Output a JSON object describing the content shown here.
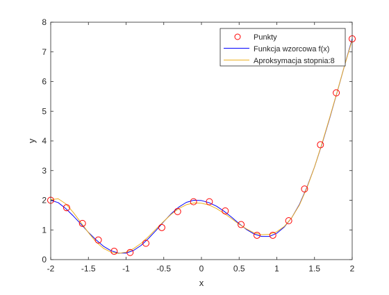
{
  "chart_data": {
    "type": "line",
    "title": "",
    "xlabel": "x",
    "ylabel": "y",
    "xlim": [
      -2,
      2
    ],
    "ylim": [
      0,
      8
    ],
    "x_ticks": [
      -2,
      -1.5,
      -1,
      -0.5,
      0,
      0.5,
      1,
      1.5,
      2
    ],
    "x_tick_labels": [
      "-2",
      "-1.5",
      "-1",
      "-0.5",
      "0",
      "0.5",
      "1",
      "1.5",
      "2"
    ],
    "y_ticks": [
      0,
      1,
      2,
      3,
      4,
      5,
      6,
      7,
      8
    ],
    "y_tick_labels": [
      "0",
      "1",
      "2",
      "3",
      "4",
      "5",
      "6",
      "7",
      "8"
    ],
    "grid": false,
    "legend_position": "top-right",
    "series": [
      {
        "name": "Punkty",
        "style": "markers",
        "marker": "circle",
        "color": "#ff0000",
        "x": [
          -2.0,
          -1.789,
          -1.579,
          -1.368,
          -1.158,
          -0.947,
          -0.737,
          -0.526,
          -0.316,
          -0.105,
          0.105,
          0.316,
          0.526,
          0.737,
          0.947,
          1.158,
          1.368,
          1.579,
          1.789,
          2.0
        ],
        "y": [
          2.0,
          1.75,
          1.22,
          0.66,
          0.28,
          0.24,
          0.55,
          1.08,
          1.62,
          1.95,
          1.95,
          1.64,
          1.18,
          0.82,
          0.82,
          1.31,
          2.38,
          3.87,
          5.62,
          7.44
        ]
      },
      {
        "name": "Funkcja wzorcowa f(x)",
        "style": "line",
        "color": "#0000ff",
        "x": [
          -2.0,
          -1.9,
          -1.8,
          -1.7,
          -1.6,
          -1.5,
          -1.4,
          -1.3,
          -1.2,
          -1.1,
          -1.0,
          -0.9,
          -0.8,
          -0.7,
          -0.6,
          -0.5,
          -0.4,
          -0.3,
          -0.2,
          -0.1,
          0.0,
          0.1,
          0.2,
          0.3,
          0.4,
          0.5,
          0.6,
          0.7,
          0.8,
          0.9,
          1.0,
          1.1,
          1.2,
          1.3,
          1.4,
          1.5,
          1.6,
          1.7,
          1.8,
          1.9,
          2.0
        ],
        "y": [
          2.0,
          1.92,
          1.72,
          1.47,
          1.2,
          0.92,
          0.67,
          0.45,
          0.3,
          0.22,
          0.22,
          0.31,
          0.48,
          0.72,
          0.99,
          1.28,
          1.55,
          1.77,
          1.93,
          2.0,
          1.99,
          1.92,
          1.8,
          1.63,
          1.43,
          1.21,
          1.01,
          0.86,
          0.78,
          0.78,
          0.89,
          1.1,
          1.42,
          1.86,
          2.44,
          3.12,
          3.9,
          4.75,
          5.64,
          6.55,
          7.44
        ]
      },
      {
        "name": "Aproksymacja stopnia:8",
        "style": "line",
        "color": "#edb120",
        "x": [
          -2.0,
          -1.9,
          -1.8,
          -1.7,
          -1.6,
          -1.5,
          -1.4,
          -1.3,
          -1.2,
          -1.1,
          -1.0,
          -0.9,
          -0.8,
          -0.7,
          -0.6,
          -0.5,
          -0.4,
          -0.3,
          -0.2,
          -0.1,
          0.0,
          0.1,
          0.2,
          0.3,
          0.4,
          0.5,
          0.6,
          0.7,
          0.8,
          0.9,
          1.0,
          1.1,
          1.2,
          1.3,
          1.4,
          1.5,
          1.6,
          1.7,
          1.8,
          1.9,
          2.0
        ],
        "y": [
          2.02,
          2.05,
          1.88,
          1.59,
          1.25,
          0.91,
          0.6,
          0.38,
          0.25,
          0.21,
          0.25,
          0.37,
          0.55,
          0.78,
          1.04,
          1.29,
          1.53,
          1.72,
          1.85,
          1.91,
          1.9,
          1.84,
          1.72,
          1.56,
          1.38,
          1.19,
          1.03,
          0.9,
          0.84,
          0.85,
          0.94,
          1.12,
          1.42,
          1.84,
          2.42,
          3.12,
          3.92,
          4.77,
          5.65,
          6.55,
          7.4
        ]
      }
    ]
  }
}
